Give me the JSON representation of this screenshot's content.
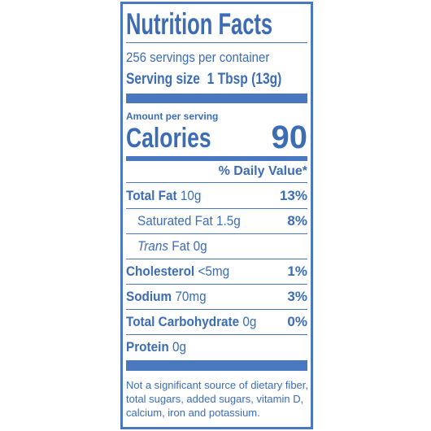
{
  "label": {
    "title": "Nutrition Facts",
    "servings": "256 servings per container",
    "serving_size_label": "Serving size",
    "serving_size": "1 Tbsp (13g)",
    "amount_per_serving": "Amount per serving",
    "calories_label": "Calories",
    "calories": "90",
    "daily_value_header": "% Daily Value*",
    "rows": [
      {
        "name": "Total Fat",
        "amount": "10g",
        "dv": "13%",
        "bold": true
      },
      {
        "name": "Saturated Fat",
        "amount": "1.5g",
        "dv": "8%",
        "bold": false
      },
      {
        "name_italic": "Trans",
        "name": "Fat",
        "amount": "0g",
        "bold": false
      },
      {
        "name": "Cholesterol",
        "amount": "<5mg",
        "dv": "1%",
        "bold": true
      },
      {
        "name": "Sodium",
        "amount": "70mg",
        "dv": "3%",
        "bold": true
      },
      {
        "name": "Total Carbohydrate",
        "amount": "0g",
        "dv": "0%",
        "bold": true
      },
      {
        "name": "Protein",
        "amount": "0g",
        "bold": true
      }
    ],
    "footnote": [
      "Not a significant source of dietary fiber,",
      "total sugars, added sugars, vitamin D,",
      "calcium, iron and potassium."
    ]
  }
}
